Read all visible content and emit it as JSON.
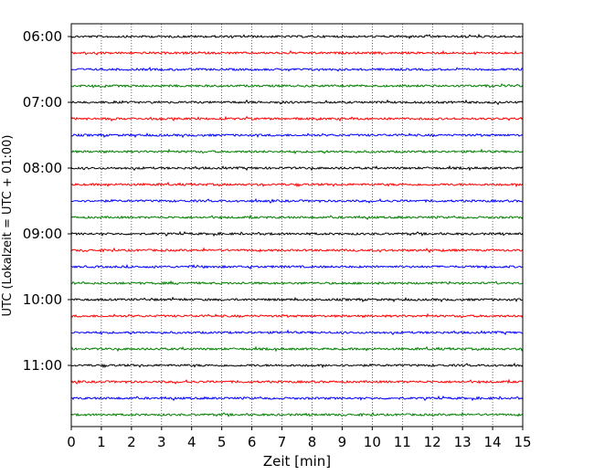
{
  "chart_data": {
    "type": "line",
    "title": "",
    "xlabel": "Zeit  [min]",
    "ylabel": "UTC (Lokalzeit = UTC + 01:00)",
    "xlim": [
      0,
      15
    ],
    "x_ticks": [
      "0",
      "1",
      "2",
      "3",
      "4",
      "5",
      "6",
      "7",
      "8",
      "9",
      "10",
      "11",
      "12",
      "13",
      "14",
      "15"
    ],
    "grid": "vertical dotted at each minute",
    "legend": "none",
    "y_ticks": [
      "06:00",
      "07:00",
      "08:00",
      "09:00",
      "10:00",
      "11:00"
    ],
    "trace_interval_minutes": 15,
    "traces_start": "06:00",
    "traces_end": "11:45",
    "color_cycle": [
      "#000000",
      "#ff0000",
      "#0000ff",
      "#008000"
    ],
    "traces": [
      "06:00",
      "06:15",
      "06:30",
      "06:45",
      "07:00",
      "07:15",
      "07:30",
      "07:45",
      "08:00",
      "08:15",
      "08:30",
      "08:45",
      "09:00",
      "09:15",
      "09:30",
      "09:45",
      "10:00",
      "10:15",
      "10:30",
      "10:45",
      "11:00",
      "11:15",
      "11:30",
      "11:45"
    ]
  }
}
